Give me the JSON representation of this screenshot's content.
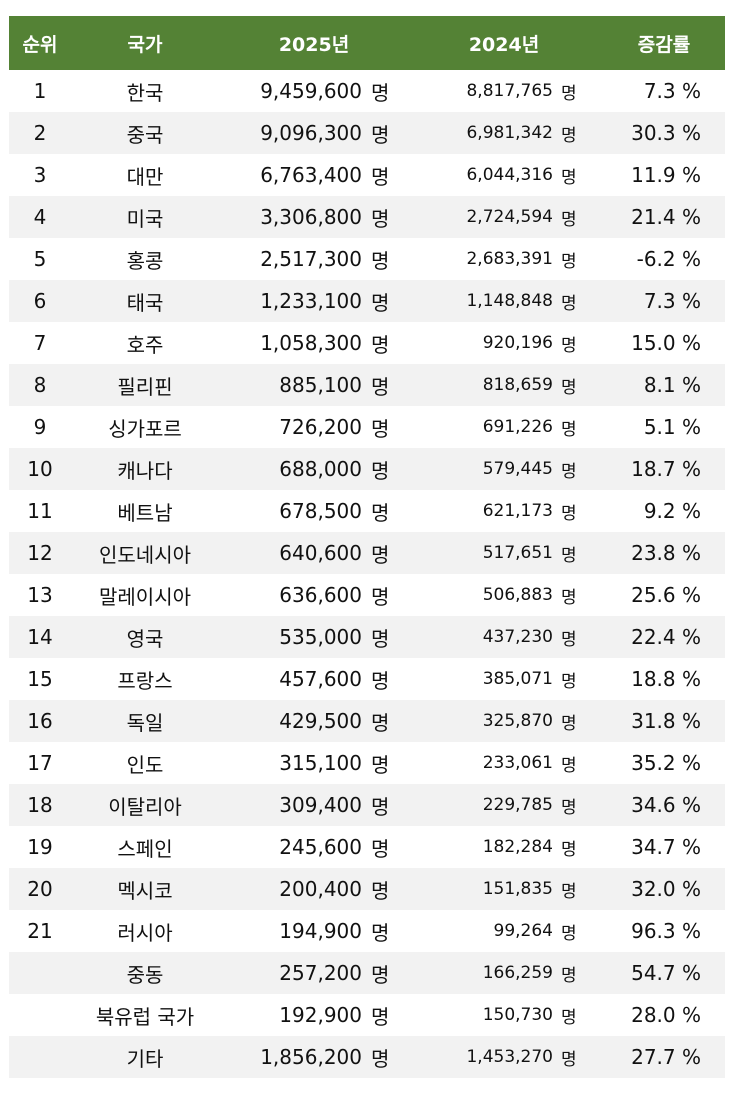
{
  "header": {
    "rank": "순위",
    "country": "국가",
    "y2025": "2025년",
    "y2024": "2024년",
    "change": "증감률"
  },
  "colors": {
    "header_bg": "#548235",
    "header_text": "#ffffff",
    "alt_row": "#f2f2f2"
  },
  "unit": "명",
  "rows": [
    {
      "rank": "1",
      "country": "한국",
      "y2025": "9,459,600",
      "y2024": "8,817,765",
      "change": "7.3 %"
    },
    {
      "rank": "2",
      "country": "중국",
      "y2025": "9,096,300",
      "y2024": "6,981,342",
      "change": "30.3 %"
    },
    {
      "rank": "3",
      "country": "대만",
      "y2025": "6,763,400",
      "y2024": "6,044,316",
      "change": "11.9 %"
    },
    {
      "rank": "4",
      "country": "미국",
      "y2025": "3,306,800",
      "y2024": "2,724,594",
      "change": "21.4 %"
    },
    {
      "rank": "5",
      "country": "홍콩",
      "y2025": "2,517,300",
      "y2024": "2,683,391",
      "change": "-6.2 %"
    },
    {
      "rank": "6",
      "country": "태국",
      "y2025": "1,233,100",
      "y2024": "1,148,848",
      "change": "7.3 %"
    },
    {
      "rank": "7",
      "country": "호주",
      "y2025": "1,058,300",
      "y2024": "920,196",
      "change": "15.0 %"
    },
    {
      "rank": "8",
      "country": "필리핀",
      "y2025": "885,100",
      "y2024": "818,659",
      "change": "8.1 %"
    },
    {
      "rank": "9",
      "country": "싱가포르",
      "y2025": "726,200",
      "y2024": "691,226",
      "change": "5.1 %"
    },
    {
      "rank": "10",
      "country": "캐나다",
      "y2025": "688,000",
      "y2024": "579,445",
      "change": "18.7 %"
    },
    {
      "rank": "11",
      "country": "베트남",
      "y2025": "678,500",
      "y2024": "621,173",
      "change": "9.2 %"
    },
    {
      "rank": "12",
      "country": "인도네시아",
      "y2025": "640,600",
      "y2024": "517,651",
      "change": "23.8 %"
    },
    {
      "rank": "13",
      "country": "말레이시아",
      "y2025": "636,600",
      "y2024": "506,883",
      "change": "25.6 %"
    },
    {
      "rank": "14",
      "country": "영국",
      "y2025": "535,000",
      "y2024": "437,230",
      "change": "22.4 %"
    },
    {
      "rank": "15",
      "country": "프랑스",
      "y2025": "457,600",
      "y2024": "385,071",
      "change": "18.8 %"
    },
    {
      "rank": "16",
      "country": "독일",
      "y2025": "429,500",
      "y2024": "325,870",
      "change": "31.8 %"
    },
    {
      "rank": "17",
      "country": "인도",
      "y2025": "315,100",
      "y2024": "233,061",
      "change": "35.2 %"
    },
    {
      "rank": "18",
      "country": "이탈리아",
      "y2025": "309,400",
      "y2024": "229,785",
      "change": "34.6 %"
    },
    {
      "rank": "19",
      "country": "스페인",
      "y2025": "245,600",
      "y2024": "182,284",
      "change": "34.7 %"
    },
    {
      "rank": "20",
      "country": "멕시코",
      "y2025": "200,400",
      "y2024": "151,835",
      "change": "32.0 %"
    },
    {
      "rank": "21",
      "country": "러시아",
      "y2025": "194,900",
      "y2024": "99,264",
      "change": "96.3 %"
    },
    {
      "rank": "",
      "country": "중동",
      "y2025": "257,200",
      "y2024": "166,259",
      "change": "54.7 %"
    },
    {
      "rank": "",
      "country": "북유럽 국가",
      "y2025": "192,900",
      "y2024": "150,730",
      "change": "28.0 %"
    },
    {
      "rank": "",
      "country": "기타",
      "y2025": "1,856,200",
      "y2024": "1,453,270",
      "change": "27.7 %"
    }
  ]
}
